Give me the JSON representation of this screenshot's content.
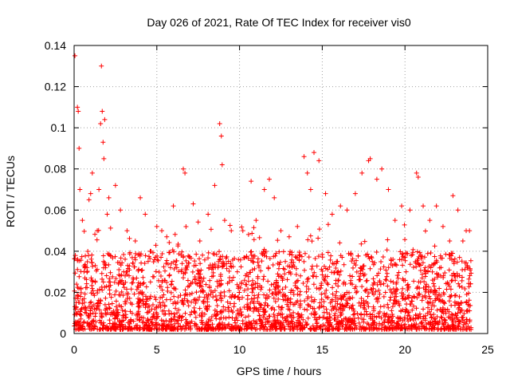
{
  "chart_data": {
    "type": "scatter",
    "title": "Day 026 of 2021, Rate Of TEC Index for receiver vis0",
    "xlabel": "GPS time / hours",
    "ylabel": "ROTI / TECUs",
    "xlim": [
      0,
      25
    ],
    "ylim": [
      0,
      0.14
    ],
    "xticks": [
      "0",
      "5",
      "10",
      "15",
      "20",
      "25"
    ],
    "yticks": [
      "0",
      "0.02",
      "0.04",
      "0.06",
      "0.08",
      "0.1",
      "0.12",
      "0.14"
    ],
    "grid": true,
    "marker": "+",
    "color": "#ff0000",
    "series": [
      {
        "name": "vis0",
        "x": [
          0.05,
          0.2,
          0.25,
          0.3,
          0.35,
          0.5,
          0.6,
          0.9,
          1.0,
          1.1,
          1.4,
          1.5,
          1.6,
          1.65,
          1.7,
          1.75,
          1.8,
          1.85,
          2.0,
          2.1,
          2.5,
          2.8,
          3.2,
          3.7,
          4.0,
          4.3,
          4.6,
          5.0,
          5.3,
          5.6,
          6.0,
          6.6,
          6.7,
          7.2,
          7.6,
          8.1,
          8.5,
          8.8,
          8.9,
          8.95,
          9.1,
          9.5,
          10.2,
          10.7,
          11.0,
          11.5,
          11.8,
          12.1,
          12.5,
          13.0,
          13.5,
          13.9,
          14.1,
          14.3,
          14.5,
          14.8,
          15.2,
          15.6,
          16.1,
          16.5,
          17.0,
          17.4,
          17.8,
          17.9,
          18.3,
          18.6,
          19.0,
          19.4,
          19.8,
          20.3,
          20.7,
          20.8,
          21.1,
          21.5,
          21.9,
          22.3,
          22.7,
          22.9,
          23.2,
          23.5,
          23.7,
          23.9
        ],
        "y": [
          0.135,
          0.11,
          0.108,
          0.09,
          0.07,
          0.055,
          0.03,
          0.065,
          0.068,
          0.078,
          0.05,
          0.07,
          0.102,
          0.13,
          0.108,
          0.093,
          0.085,
          0.104,
          0.058,
          0.066,
          0.072,
          0.06,
          0.05,
          0.045,
          0.066,
          0.058,
          0.04,
          0.052,
          0.05,
          0.047,
          0.062,
          0.08,
          0.078,
          0.063,
          0.045,
          0.058,
          0.072,
          0.102,
          0.096,
          0.082,
          0.055,
          0.05,
          0.05,
          0.074,
          0.055,
          0.07,
          0.075,
          0.066,
          0.05,
          0.047,
          0.052,
          0.086,
          0.078,
          0.07,
          0.088,
          0.084,
          0.068,
          0.058,
          0.062,
          0.06,
          0.068,
          0.078,
          0.084,
          0.085,
          0.075,
          0.08,
          0.07,
          0.055,
          0.062,
          0.06,
          0.078,
          0.076,
          0.062,
          0.055,
          0.062,
          0.052,
          0.045,
          0.067,
          0.06,
          0.045,
          0.05,
          0.05
        ]
      }
    ]
  }
}
